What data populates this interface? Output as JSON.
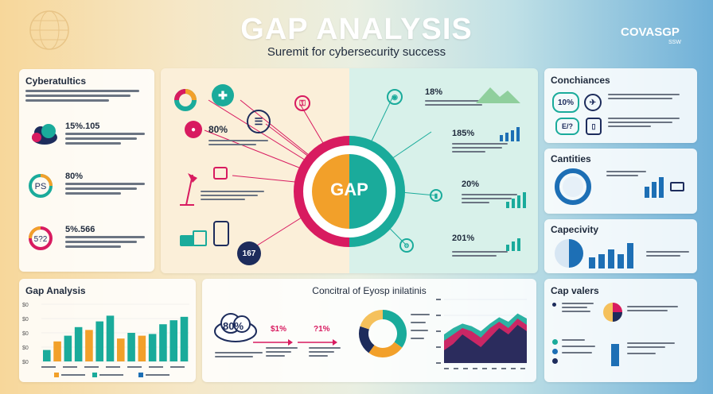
{
  "header": {
    "title": "GAP ANALYSIS",
    "subtitle": "Suremit for cybersecurity success",
    "logo": "COVASGP",
    "logo_sub": "SSW"
  },
  "left": {
    "title": "Cyberatultics",
    "items": [
      {
        "value": "15%.105",
        "color": "#f2a02a",
        "icon": "cloud-icon"
      },
      {
        "value": "80%",
        "color": "#1aab9b",
        "icon": "ps-ring-icon",
        "badge": "PS"
      },
      {
        "value": "5%.566",
        "color": "#d81b60",
        "icon": "ring-icon",
        "badge": "5?2"
      }
    ]
  },
  "center": {
    "gap_label": "GAP",
    "left_items": [
      {
        "value": "80%",
        "color": "#d81b60"
      },
      {
        "value": "167",
        "color": "#1d2c5c"
      }
    ],
    "right_items": [
      {
        "value": "18%",
        "color": "#1aab9b"
      },
      {
        "value": "185%",
        "color": "#1aab9b"
      },
      {
        "value": "20%",
        "color": "#1aab9b"
      },
      {
        "value": "201%",
        "color": "#1aab9b"
      }
    ]
  },
  "right": {
    "conchiances": {
      "title": "Conchiances",
      "badge1": "10%",
      "badge2": "E/?"
    },
    "cantities": {
      "title": "Cantities"
    },
    "capecivity": {
      "title": "Capecivity"
    },
    "cap_valers": {
      "title": "Cap valers"
    }
  },
  "bottom": {
    "gap_analysis": {
      "title": "Gap Analysis"
    },
    "conctrol": {
      "title": "Concitral of Eyosp inilatinis",
      "cloud_value": "80%",
      "val1": "$1%",
      "val2": "?1%"
    }
  },
  "chart_data": [
    {
      "type": "bar",
      "title": "Gap Analysis",
      "ylim": [
        0,
        100
      ],
      "yticks": [
        "$0",
        "$0",
        "$0",
        "$0",
        "$0"
      ],
      "values": [
        20,
        35,
        45,
        60,
        55,
        70,
        80,
        40,
        50,
        45,
        48,
        65,
        72,
        78
      ],
      "colors": [
        "#1aab9b",
        "#f2a02a",
        "#1aab9b",
        "#1aab9b",
        "#f2a02a",
        "#1aab9b",
        "#1aab9b",
        "#f2a02a",
        "#1aab9b",
        "#f2a02a",
        "#1aab9b",
        "#1aab9b",
        "#1aab9b",
        "#1aab9b"
      ]
    },
    {
      "type": "pie",
      "values": [
        35,
        25,
        20,
        20
      ],
      "colors": [
        "#1aab9b",
        "#f2a02a",
        "#1d2c5c",
        "#f5c15c"
      ]
    },
    {
      "type": "area",
      "series": [
        {
          "values": [
            20,
            30,
            45,
            35,
            25,
            40,
            55,
            45,
            60,
            50
          ],
          "color": "#1d2c5c"
        },
        {
          "values": [
            35,
            45,
            55,
            50,
            40,
            55,
            65,
            55,
            70,
            60
          ],
          "color": "#d81b60"
        },
        {
          "values": [
            45,
            55,
            62,
            58,
            50,
            62,
            72,
            65,
            78,
            70
          ],
          "color": "#1aab9b"
        }
      ]
    }
  ]
}
